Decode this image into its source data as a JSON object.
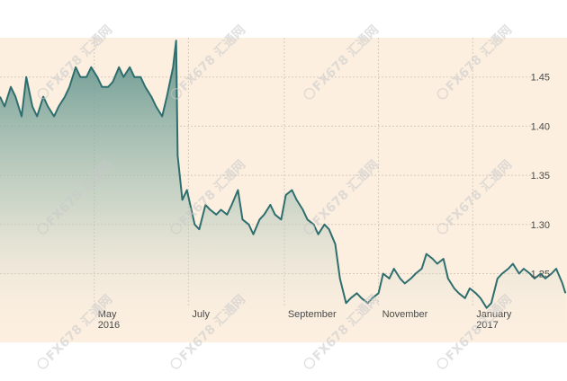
{
  "watermark": {
    "text": "FX678 汇通网"
  },
  "chart_data": {
    "type": "area",
    "ylim": [
      1.18,
      1.49
    ],
    "yticks": [
      1.25,
      1.3,
      1.35,
      1.4,
      1.45
    ],
    "ytick_labels": [
      "1.25",
      "1.30",
      "1.35",
      "1.40",
      "1.45"
    ],
    "xtick_labels": [
      {
        "month": "May",
        "year": "2016",
        "date": "2016-05-01"
      },
      {
        "month": "July",
        "year": "",
        "date": "2016-07-01"
      },
      {
        "month": "September",
        "year": "",
        "date": "2016-09-01"
      },
      {
        "month": "November",
        "year": "",
        "date": "2016-11-01"
      },
      {
        "month": "January",
        "year": "2017",
        "date": "2017-01-01"
      }
    ],
    "grid": true,
    "colors": {
      "line": "#2e6e6e",
      "fill_top": "#5a8f88",
      "background": "#fcefe0",
      "grid": "#d8cbbb"
    },
    "series": [
      {
        "values": [
          [
            "2016-03-01",
            1.43
          ],
          [
            "2016-03-04",
            1.42
          ],
          [
            "2016-03-08",
            1.44
          ],
          [
            "2016-03-11",
            1.43
          ],
          [
            "2016-03-15",
            1.41
          ],
          [
            "2016-03-18",
            1.45
          ],
          [
            "2016-03-22",
            1.42
          ],
          [
            "2016-03-25",
            1.41
          ],
          [
            "2016-03-29",
            1.43
          ],
          [
            "2016-04-01",
            1.42
          ],
          [
            "2016-04-05",
            1.41
          ],
          [
            "2016-04-08",
            1.42
          ],
          [
            "2016-04-12",
            1.43
          ],
          [
            "2016-04-15",
            1.44
          ],
          [
            "2016-04-19",
            1.46
          ],
          [
            "2016-04-22",
            1.45
          ],
          [
            "2016-04-26",
            1.45
          ],
          [
            "2016-04-29",
            1.46
          ],
          [
            "2016-05-03",
            1.45
          ],
          [
            "2016-05-06",
            1.44
          ],
          [
            "2016-05-10",
            1.44
          ],
          [
            "2016-05-13",
            1.445
          ],
          [
            "2016-05-17",
            1.46
          ],
          [
            "2016-05-20",
            1.45
          ],
          [
            "2016-05-24",
            1.46
          ],
          [
            "2016-05-27",
            1.45
          ],
          [
            "2016-05-31",
            1.45
          ],
          [
            "2016-06-03",
            1.44
          ],
          [
            "2016-06-07",
            1.43
          ],
          [
            "2016-06-10",
            1.42
          ],
          [
            "2016-06-14",
            1.41
          ],
          [
            "2016-06-17",
            1.43
          ],
          [
            "2016-06-21",
            1.46
          ],
          [
            "2016-06-23",
            1.487
          ],
          [
            "2016-06-24",
            1.37
          ],
          [
            "2016-06-27",
            1.325
          ],
          [
            "2016-06-30",
            1.335
          ],
          [
            "2016-07-05",
            1.3
          ],
          [
            "2016-07-08",
            1.295
          ],
          [
            "2016-07-12",
            1.32
          ],
          [
            "2016-07-15",
            1.315
          ],
          [
            "2016-07-19",
            1.31
          ],
          [
            "2016-07-22",
            1.315
          ],
          [
            "2016-07-26",
            1.31
          ],
          [
            "2016-07-29",
            1.32
          ],
          [
            "2016-08-02",
            1.335
          ],
          [
            "2016-08-05",
            1.305
          ],
          [
            "2016-08-09",
            1.3
          ],
          [
            "2016-08-12",
            1.29
          ],
          [
            "2016-08-16",
            1.305
          ],
          [
            "2016-08-19",
            1.31
          ],
          [
            "2016-08-23",
            1.32
          ],
          [
            "2016-08-26",
            1.31
          ],
          [
            "2016-08-30",
            1.305
          ],
          [
            "2016-09-02",
            1.33
          ],
          [
            "2016-09-06",
            1.335
          ],
          [
            "2016-09-09",
            1.325
          ],
          [
            "2016-09-13",
            1.315
          ],
          [
            "2016-09-16",
            1.305
          ],
          [
            "2016-09-20",
            1.3
          ],
          [
            "2016-09-23",
            1.29
          ],
          [
            "2016-09-27",
            1.3
          ],
          [
            "2016-09-30",
            1.295
          ],
          [
            "2016-10-04",
            1.28
          ],
          [
            "2016-10-07",
            1.245
          ],
          [
            "2016-10-11",
            1.22
          ],
          [
            "2016-10-14",
            1.225
          ],
          [
            "2016-10-18",
            1.23
          ],
          [
            "2016-10-21",
            1.225
          ],
          [
            "2016-10-25",
            1.22
          ],
          [
            "2016-10-28",
            1.225
          ],
          [
            "2016-11-01",
            1.23
          ],
          [
            "2016-11-04",
            1.25
          ],
          [
            "2016-11-08",
            1.245
          ],
          [
            "2016-11-11",
            1.255
          ],
          [
            "2016-11-15",
            1.245
          ],
          [
            "2016-11-18",
            1.24
          ],
          [
            "2016-11-22",
            1.245
          ],
          [
            "2016-11-25",
            1.25
          ],
          [
            "2016-11-29",
            1.255
          ],
          [
            "2016-12-02",
            1.27
          ],
          [
            "2016-12-06",
            1.265
          ],
          [
            "2016-12-09",
            1.26
          ],
          [
            "2016-12-13",
            1.265
          ],
          [
            "2016-12-16",
            1.245
          ],
          [
            "2016-12-20",
            1.235
          ],
          [
            "2016-12-23",
            1.23
          ],
          [
            "2016-12-27",
            1.225
          ],
          [
            "2016-12-30",
            1.235
          ],
          [
            "2017-01-03",
            1.23
          ],
          [
            "2017-01-06",
            1.225
          ],
          [
            "2017-01-10",
            1.215
          ],
          [
            "2017-01-13",
            1.22
          ],
          [
            "2017-01-17",
            1.245
          ],
          [
            "2017-01-20",
            1.25
          ],
          [
            "2017-01-24",
            1.255
          ],
          [
            "2017-01-27",
            1.26
          ],
          [
            "2017-01-31",
            1.25
          ],
          [
            "2017-02-03",
            1.255
          ],
          [
            "2017-02-07",
            1.25
          ],
          [
            "2017-02-10",
            1.245
          ],
          [
            "2017-02-14",
            1.25
          ],
          [
            "2017-02-17",
            1.245
          ],
          [
            "2017-02-21",
            1.25
          ],
          [
            "2017-02-24",
            1.255
          ],
          [
            "2017-02-28",
            1.24
          ],
          [
            "2017-03-02",
            1.23
          ]
        ]
      }
    ]
  }
}
